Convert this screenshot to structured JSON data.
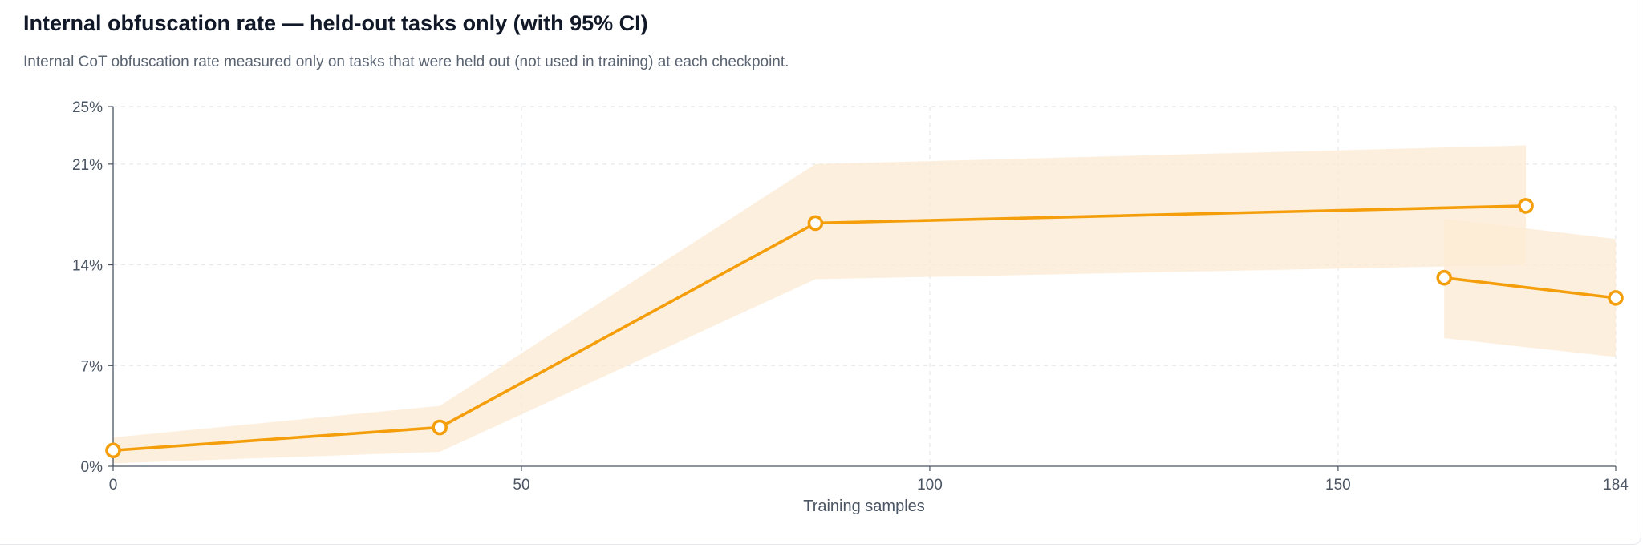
{
  "chart_data": {
    "type": "line",
    "title": "Internal obfuscation rate — held-out tasks only (with 95% CI)",
    "subtitle": "Internal CoT obfuscation rate measured only on tasks that were held out (not used in training) at each checkpoint.",
    "xlabel": "Training samples",
    "ylabel": "",
    "xlim": [
      0,
      184
    ],
    "ylim": [
      0,
      25
    ],
    "x_ticks": [
      0,
      50,
      100,
      150,
      184
    ],
    "x_tick_labels": [
      "0",
      "50",
      "100",
      "150",
      "184"
    ],
    "y_ticks": [
      0,
      7,
      14,
      21,
      25
    ],
    "y_tick_labels": [
      "0%",
      "7%",
      "14%",
      "21%",
      "25%"
    ],
    "grid": true,
    "legend": "none",
    "series": [
      {
        "color": "#f59e0b",
        "band_color": "#fdebd3",
        "points": [
          {
            "x": 0,
            "y": 1.1,
            "ci_low": 0.2,
            "ci_high": 2.0
          },
          {
            "x": 40,
            "y": 2.7,
            "ci_low": 1.0,
            "ci_high": 4.2
          },
          {
            "x": 86,
            "y": 16.9,
            "ci_low": 13.0,
            "ci_high": 21.0
          },
          {
            "x": 173,
            "y": 18.1,
            "ci_low": 14.0,
            "ci_high": 22.3
          }
        ]
      },
      {
        "color": "#f59e0b",
        "band_color": "#fdebd3",
        "points": [
          {
            "x": 163,
            "y": 13.1,
            "ci_low": 8.9,
            "ci_high": 17.2
          },
          {
            "x": 184,
            "y": 11.7,
            "ci_low": 7.6,
            "ci_high": 15.8
          }
        ]
      }
    ]
  }
}
